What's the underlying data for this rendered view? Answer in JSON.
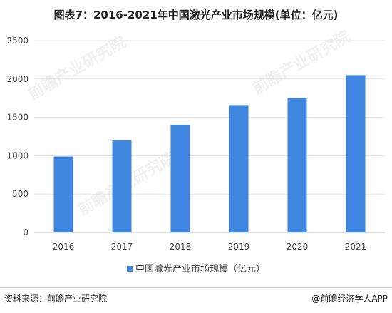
{
  "title": "图表7：2016-2021年中国激光产业市场规模(单位：亿元)",
  "colors": {
    "bar": "#3f86e0",
    "grid": "#e6e6e6",
    "axis": "#bfbfbf"
  },
  "chart_data": {
    "type": "bar",
    "categories": [
      "2016",
      "2017",
      "2018",
      "2019",
      "2020",
      "2021"
    ],
    "series": [
      {
        "name": "中国激光产业市场规模（亿元）",
        "values": [
          990,
          1200,
          1400,
          1660,
          1750,
          2050
        ]
      }
    ],
    "yticks": [
      "0",
      "500",
      "1000",
      "1500",
      "2000",
      "2500"
    ],
    "ylim": [
      0,
      2500
    ],
    "grid": true,
    "legend_position": "bottom"
  },
  "footer": {
    "source": "资料来源：前瞻产业研究院",
    "brand": "@前瞻经济学人APP"
  },
  "watermark_text": "前瞻产业研究院"
}
